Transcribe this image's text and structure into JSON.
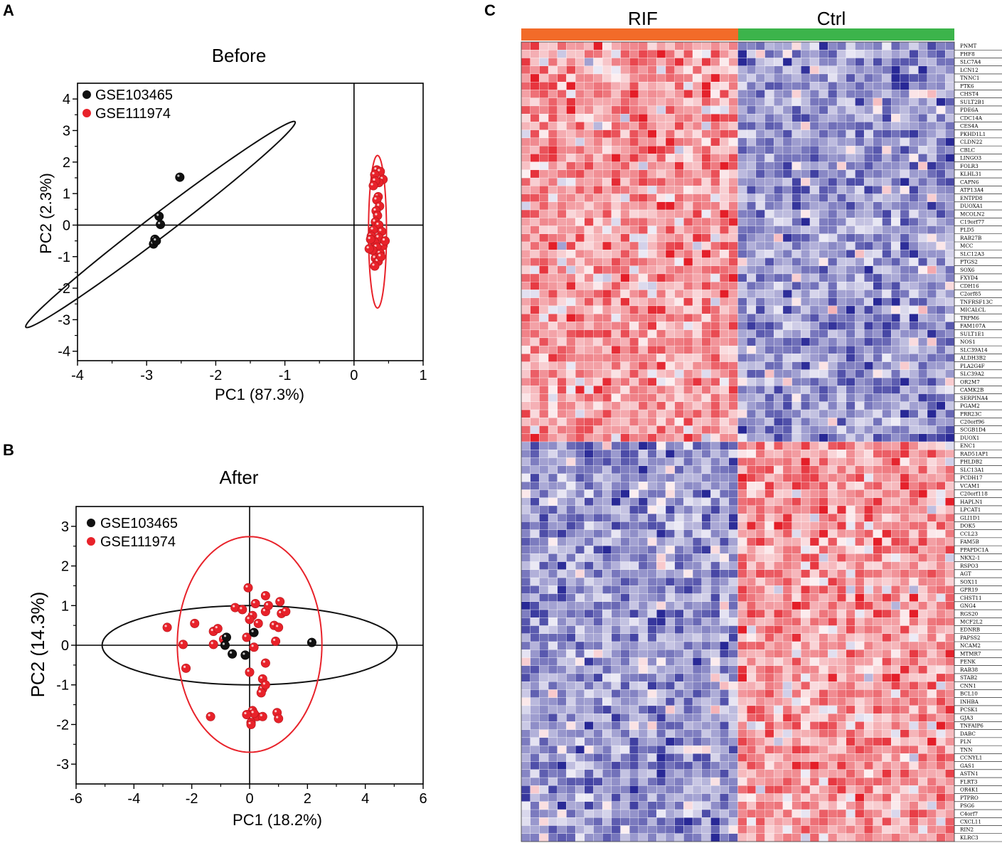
{
  "colors": {
    "black_dot": "#111111",
    "red_dot": "#e8222a",
    "rif_bar": "#f26b29",
    "ctrl_bar": "#3cb44b",
    "heat_high": "#e8222a",
    "heat_low": "#2b2b9b"
  },
  "chart_data": [
    {
      "panel": "A",
      "type": "scatter",
      "title": "Before",
      "xlabel": "PC1 (87.3%)",
      "ylabel": "PC2 (2.3%)",
      "xlim": [
        -4,
        1
      ],
      "ylim": [
        -4.3,
        4.5
      ],
      "xticks": [
        -4,
        -3,
        -2,
        -1,
        0,
        1
      ],
      "yticks": [
        -4,
        -3,
        -2,
        -1,
        0,
        1,
        2,
        3,
        4
      ],
      "legend_position": "top-left",
      "series": [
        {
          "name": "GSE103465",
          "color": "#111111",
          "points": [
            [
              -2.52,
              1.52
            ],
            [
              -2.82,
              0.28
            ],
            [
              -2.8,
              0.02
            ],
            [
              -2.88,
              -0.45
            ],
            [
              -2.9,
              -0.6
            ],
            [
              -2.86,
              -0.5
            ]
          ]
        },
        {
          "name": "GSE111974",
          "color": "#e8222a",
          "points": [
            [
              0.33,
              1.75
            ],
            [
              0.38,
              1.7
            ],
            [
              0.3,
              1.6
            ],
            [
              0.42,
              1.45
            ],
            [
              0.36,
              1.35
            ],
            [
              0.31,
              1.4
            ],
            [
              0.35,
              0.9
            ],
            [
              0.33,
              0.8
            ],
            [
              0.37,
              0.6
            ],
            [
              0.32,
              0.45
            ],
            [
              0.34,
              0.3
            ],
            [
              0.31,
              0.1
            ],
            [
              0.36,
              0.0
            ],
            [
              0.28,
              -0.15
            ],
            [
              0.4,
              -0.2
            ],
            [
              0.25,
              -0.35
            ],
            [
              0.36,
              -0.4
            ],
            [
              0.3,
              -0.55
            ],
            [
              0.42,
              -0.65
            ],
            [
              0.33,
              -0.7
            ],
            [
              0.27,
              -0.8
            ],
            [
              0.38,
              -0.9
            ],
            [
              0.31,
              -1.05
            ],
            [
              0.35,
              -1.15
            ],
            [
              0.3,
              -1.3
            ],
            [
              0.22,
              -0.75
            ],
            [
              0.45,
              -0.5
            ],
            [
              0.24,
              -0.45
            ],
            [
              0.39,
              -1.0
            ],
            [
              0.28,
              1.25
            ]
          ]
        }
      ],
      "ellipses": [
        {
          "series": "GSE103465",
          "center": [
            -2.8,
            0.02
          ],
          "semi_major": 3.8,
          "semi_minor": 0.23,
          "angle_deg": 59.3
        },
        {
          "series": "GSE111974",
          "center": [
            0.34,
            -0.21
          ],
          "semi_major": 2.42,
          "semi_minor": 0.13,
          "angle_deg": 90
        }
      ]
    },
    {
      "panel": "B",
      "type": "scatter",
      "title": "After",
      "xlabel": "PC1 (18.2%)",
      "ylabel": "PC2 (14.3%)",
      "xlim": [
        -6,
        6
      ],
      "ylim": [
        -3.5,
        3.5
      ],
      "xticks": [
        -6,
        -4,
        -2,
        0,
        2,
        4,
        6
      ],
      "yticks": [
        -3,
        -2,
        -1,
        0,
        1,
        2,
        3
      ],
      "legend_position": "top-left",
      "series": [
        {
          "name": "GSE103465",
          "color": "#111111",
          "points": [
            [
              -0.8,
              0.2
            ],
            [
              -0.85,
              0.0
            ],
            [
              -0.6,
              -0.22
            ],
            [
              -0.15,
              -0.25
            ],
            [
              0.15,
              0.32
            ],
            [
              2.15,
              0.07
            ]
          ]
        },
        {
          "name": "GSE111974",
          "color": "#e8222a",
          "points": [
            [
              -2.85,
              0.45
            ],
            [
              -2.3,
              0.02
            ],
            [
              -2.2,
              -0.58
            ],
            [
              -1.9,
              0.55
            ],
            [
              -1.25,
              0.35
            ],
            [
              -1.1,
              0.42
            ],
            [
              -1.25,
              0.02
            ],
            [
              -0.9,
              0.15
            ],
            [
              -1.35,
              -1.8
            ],
            [
              -0.5,
              0.95
            ],
            [
              -0.25,
              0.9
            ],
            [
              -0.05,
              1.45
            ],
            [
              0.2,
              1.05
            ],
            [
              0.55,
              1.25
            ],
            [
              0.1,
              0.75
            ],
            [
              0.0,
              0.65
            ],
            [
              0.3,
              0.55
            ],
            [
              0.55,
              0.85
            ],
            [
              0.65,
              1.0
            ],
            [
              0.85,
              0.5
            ],
            [
              1.0,
              0.45
            ],
            [
              1.05,
              1.1
            ],
            [
              1.1,
              0.8
            ],
            [
              1.25,
              0.85
            ],
            [
              -0.1,
              0.2
            ],
            [
              0.9,
              0.1
            ],
            [
              0.15,
              -0.05
            ],
            [
              0.55,
              -0.45
            ],
            [
              0.0,
              -0.68
            ],
            [
              0.45,
              -0.85
            ],
            [
              0.45,
              -1.1
            ],
            [
              0.55,
              -1.0
            ],
            [
              0.4,
              -1.2
            ],
            [
              0.1,
              -1.65
            ],
            [
              0.25,
              -1.8
            ],
            [
              0.15,
              -1.72
            ],
            [
              0.45,
              -1.8
            ],
            [
              0.05,
              -1.95
            ],
            [
              0.95,
              -1.7
            ],
            [
              1.0,
              -1.85
            ],
            [
              -0.1,
              -1.75
            ],
            [
              0.05,
              -2.0
            ]
          ]
        }
      ],
      "ellipses": [
        {
          "series": "GSE103465",
          "center": [
            0.0,
            0.0
          ],
          "semi_major": 5.1,
          "semi_minor": 1.0,
          "angle_deg": 0
        },
        {
          "series": "GSE111974",
          "center": [
            0.0,
            0.02
          ],
          "semi_major": 2.72,
          "semi_minor": 2.5,
          "angle_deg": 90
        }
      ]
    },
    {
      "panel": "C",
      "type": "heatmap",
      "groups": [
        {
          "name": "RIF",
          "n_samples": 24
        },
        {
          "name": "Ctrl",
          "n_samples": 24
        }
      ],
      "color_scale": "low = blue, mid = white, high = red (row z-score)",
      "up_in_RIF_genes": [
        "PNMT",
        "PHF8",
        "SLC7A4",
        "LCN12",
        "TNNC1",
        "PTK6",
        "CHST4",
        "SULT2B1",
        "PDE6A",
        "CDC14A",
        "CES4A",
        "PKHD1L1",
        "CLDN22",
        "CBLC",
        "LINGO3",
        "FOLR3",
        "KLHL31",
        "CAPN6",
        "ATP13A4",
        "ENTPD8",
        "DUOXA1",
        "MCOLN2",
        "C19orf77",
        "PLD5",
        "RAB27B",
        "MCC",
        "SLC12A3",
        "PTGS2",
        "SOX6",
        "FXYD4",
        "CDH16",
        "C2orf85",
        "TNFRSF13C",
        "MICALCL",
        "TRPM6",
        "FAM107A",
        "SULT1E1",
        "NOS1",
        "SLC39A14",
        "ALDH3B2",
        "PLA2G4F",
        "SLC39A2",
        "OR2M7",
        "CAMK2B",
        "SERPINA4",
        "PGAM2",
        "PRR23C",
        "C20orf96",
        "SCGB1D4",
        "DUOX1"
      ],
      "down_in_RIF_genes": [
        "ENC1",
        "RAD51AP1",
        "PHLDB2",
        "SLC13A1",
        "PCDH17",
        "VCAM1",
        "C20orf118",
        "HAPLN1",
        "LPCAT1",
        "GLI1D1",
        "DOK5",
        "CCL23",
        "FAM5B",
        "PPAPDC1A",
        "NKX2-1",
        "RSPO3",
        "AGT",
        "SOX11",
        "GPR19",
        "CHST11",
        "GNG4",
        "RGS20",
        "MCF2L2",
        "EDNRB",
        "PAPSS2",
        "NCAM2",
        "MTMR7",
        "PENK",
        "RAB38",
        "STAB2",
        "CNN1",
        "BCL10",
        "INHBA",
        "PCSK1",
        "GJA3",
        "TNFAIP6",
        "DABC",
        "PLN",
        "TNN",
        "CCNYL1",
        "GAS1",
        "ASTN1",
        "FLRT3",
        "OR4K1",
        "PTPRO",
        "PSG6",
        "C4orf7",
        "CXCL11",
        "RIN2",
        "KLRC3"
      ]
    }
  ]
}
